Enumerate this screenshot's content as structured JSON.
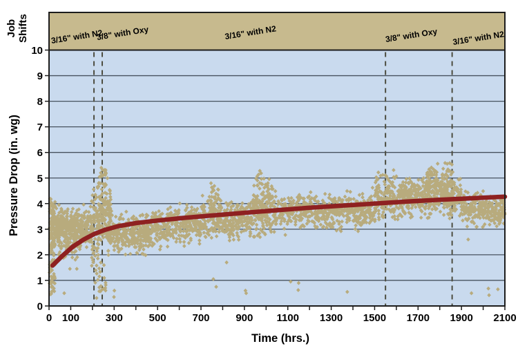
{
  "chart_data": {
    "type": "scatter",
    "title": "",
    "xlabel": "Time (hrs.)",
    "ylabel": "Pressure Drop (in. wg)",
    "x_range": [
      0,
      2100
    ],
    "y_range": [
      0,
      10
    ],
    "x_tick_values": [
      0,
      100,
      300,
      500,
      700,
      900,
      1100,
      1300,
      1500,
      1700,
      1900,
      2100
    ],
    "x_tick_labels": [
      "0",
      "100",
      "300",
      "500",
      "700",
      "900",
      "1100",
      "1300",
      "1500",
      "1700",
      "1900",
      "2100"
    ],
    "x_minor_tick_step": 100,
    "y_tick_values": [
      0,
      1,
      2,
      3,
      4,
      5,
      6,
      7,
      8,
      9,
      10
    ],
    "grid": "horizontal-only",
    "legend": "none",
    "colors": {
      "plot_bg": "#c9daee",
      "band": "#c7ba8e",
      "frame": "#1c1c1c",
      "grid": "#47525e",
      "dashed": "#4d4d40",
      "scatter": "#b8ab7d",
      "trend": "#8e2121",
      "text": "#000000"
    },
    "job_shifts": {
      "axis_label_lines": [
        "Job",
        "Shifts"
      ],
      "boundaries_hr": [
        207,
        245,
        1550,
        1857
      ],
      "segments": [
        {
          "label": "3/16\" with N2",
          "label_anchor_hr": 12
        },
        {
          "label": "3/8\" with Oxy",
          "label_anchor_hr": 222
        },
        {
          "label": "3/16\" with N2",
          "label_anchor_hr": 812
        },
        {
          "label": "3/8\" with Oxy",
          "label_anchor_hr": 1552
        },
        {
          "label": "3/16\" with N2",
          "label_anchor_hr": 1862
        }
      ]
    },
    "trend_line": {
      "description": "fitted pressure-drop growth curve",
      "points": [
        [
          16,
          1.58
        ],
        [
          60,
          1.95
        ],
        [
          110,
          2.32
        ],
        [
          160,
          2.6
        ],
        [
          210,
          2.82
        ],
        [
          260,
          2.98
        ],
        [
          320,
          3.12
        ],
        [
          400,
          3.24
        ],
        [
          500,
          3.34
        ],
        [
          620,
          3.44
        ],
        [
          760,
          3.54
        ],
        [
          900,
          3.64
        ],
        [
          1050,
          3.74
        ],
        [
          1200,
          3.84
        ],
        [
          1350,
          3.92
        ],
        [
          1500,
          4.0
        ],
        [
          1650,
          4.08
        ],
        [
          1800,
          4.15
        ],
        [
          1950,
          4.21
        ],
        [
          2100,
          4.27
        ]
      ]
    },
    "scatter": {
      "marker": "diamond",
      "seed": 7,
      "clusters": [
        {
          "t": [
            2,
            28
          ],
          "n": 100,
          "v": [
            2.3,
            2.3
          ],
          "spread": 1.95,
          "clip": [
            0.45,
            4.2
          ],
          "dist": "uniform"
        },
        {
          "t": [
            8,
            200
          ],
          "n": 430,
          "v": [
            3.15,
            3.1
          ],
          "spread": 0.55,
          "clip": [
            1.9,
            4.25
          ],
          "dist": "normal"
        },
        {
          "t": [
            40,
            150
          ],
          "n": 60,
          "v": [
            2.3,
            2.4
          ],
          "spread": 0.45,
          "clip": [
            1.45,
            3.0
          ],
          "dist": "normal"
        },
        {
          "t": [
            196,
            232
          ],
          "n": 70,
          "v": [
            3.0,
            3.3
          ],
          "spread": 1.5,
          "clip": [
            0.8,
            5.0
          ],
          "dist": "uniform"
        },
        {
          "t": [
            228,
            288
          ],
          "n": 150,
          "v": [
            3.7,
            3.5
          ],
          "spread": 1.0,
          "clip": [
            1.6,
            5.65
          ],
          "dist": "normal"
        },
        {
          "t": [
            235,
            265
          ],
          "n": 20,
          "v": [
            5.0,
            5.0
          ],
          "spread": 0.45,
          "clip": [
            4.2,
            5.65
          ],
          "dist": "normal"
        },
        {
          "t": [
            205,
            262
          ],
          "n": 22,
          "v": [
            1.0,
            1.0
          ],
          "spread": 0.7,
          "clip": [
            0.25,
            1.9
          ],
          "dist": "uniform"
        },
        {
          "t": [
            262,
            470
          ],
          "n": 340,
          "v": [
            2.75,
            2.85
          ],
          "spread": 0.62,
          "clip": [
            1.25,
            4.15
          ],
          "dist": "normal"
        },
        {
          "t": [
            470,
            700
          ],
          "n": 330,
          "v": [
            3.05,
            3.2
          ],
          "spread": 0.55,
          "clip": [
            1.95,
            4.3
          ],
          "dist": "normal"
        },
        {
          "t": [
            700,
            795
          ],
          "n": 130,
          "v": [
            3.45,
            3.45
          ],
          "spread": 0.75,
          "clip": [
            2.25,
            4.95
          ],
          "dist": "normal"
        },
        {
          "t": [
            745,
            780
          ],
          "n": 15,
          "v": [
            4.4,
            4.4
          ],
          "spread": 0.4,
          "clip": [
            3.6,
            4.95
          ],
          "dist": "normal"
        },
        {
          "t": [
            795,
            930
          ],
          "n": 190,
          "v": [
            3.3,
            3.35
          ],
          "spread": 0.55,
          "clip": [
            2.35,
            4.4
          ],
          "dist": "normal"
        },
        {
          "t": [
            930,
            1045
          ],
          "n": 170,
          "v": [
            3.7,
            3.7
          ],
          "spread": 0.8,
          "clip": [
            2.55,
            5.4
          ],
          "dist": "normal"
        },
        {
          "t": [
            950,
            1015
          ],
          "n": 35,
          "v": [
            4.6,
            4.6
          ],
          "spread": 0.55,
          "clip": [
            3.4,
            5.4
          ],
          "dist": "normal"
        },
        {
          "t": [
            1045,
            1500
          ],
          "n": 500,
          "v": [
            3.6,
            3.8
          ],
          "spread": 0.55,
          "clip": [
            2.55,
            4.85
          ],
          "dist": "normal"
        },
        {
          "t": [
            1500,
            1595
          ],
          "n": 140,
          "v": [
            4.15,
            4.2
          ],
          "spread": 0.75,
          "clip": [
            2.9,
            5.6
          ],
          "dist": "normal"
        },
        {
          "t": [
            1595,
            1900
          ],
          "n": 460,
          "v": [
            4.25,
            4.3
          ],
          "spread": 0.62,
          "clip": [
            3.05,
            5.8
          ],
          "dist": "normal"
        },
        {
          "t": [
            1740,
            1860
          ],
          "n": 90,
          "v": [
            4.9,
            4.9
          ],
          "spread": 0.5,
          "clip": [
            3.9,
            5.8
          ],
          "dist": "normal"
        },
        {
          "t": [
            1900,
            2100
          ],
          "n": 270,
          "v": [
            3.8,
            3.7
          ],
          "spread": 0.48,
          "clip": [
            2.85,
            4.55
          ],
          "dist": "normal"
        }
      ],
      "outliers_hr_v": [
        [
          70,
          0.5
        ],
        [
          96,
          1.45
        ],
        [
          128,
          1.45
        ],
        [
          299,
          0.35
        ],
        [
          301,
          0.6
        ],
        [
          757,
          1.05
        ],
        [
          770,
          0.75
        ],
        [
          818,
          1.7
        ],
        [
          905,
          0.6
        ],
        [
          908,
          0.5
        ],
        [
          1113,
          0.95
        ],
        [
          1148,
          0.62
        ],
        [
          1150,
          0.9
        ],
        [
          1374,
          0.55
        ],
        [
          1931,
          2.6
        ],
        [
          1946,
          0.5
        ],
        [
          2024,
          0.68
        ],
        [
          2027,
          0.42
        ],
        [
          2068,
          0.65
        ]
      ]
    }
  }
}
